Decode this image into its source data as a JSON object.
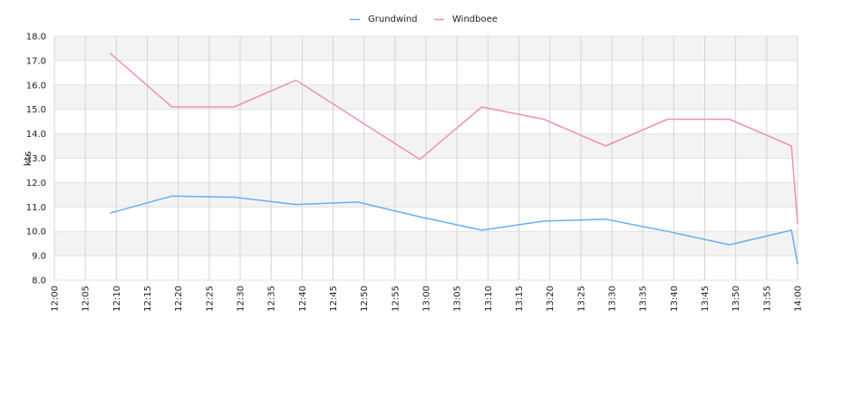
{
  "chart_data": {
    "type": "line",
    "title": "",
    "xlabel": "",
    "ylabel": "kts",
    "ylim": [
      8.0,
      18.0
    ],
    "y_ticks": [
      "8.0",
      "9.0",
      "10.0",
      "11.0",
      "12.0",
      "13.0",
      "14.0",
      "15.0",
      "16.0",
      "17.0",
      "18.0"
    ],
    "x_ticks": [
      "12:00",
      "12:05",
      "12:10",
      "12:15",
      "12:20",
      "12:25",
      "12:30",
      "12:35",
      "12:40",
      "12:45",
      "12:50",
      "12:55",
      "13:00",
      "13:05",
      "13:10",
      "13:15",
      "13:20",
      "13:25",
      "13:30",
      "13:35",
      "13:40",
      "13:45",
      "13:50",
      "13:55",
      "14:00"
    ],
    "xlim": [
      "12:00",
      "14:00"
    ],
    "grid": true,
    "legend_position": "top-center",
    "series": [
      {
        "name": "Grundwind",
        "color": "#6aaef0",
        "points": [
          [
            "12:09",
            10.75
          ],
          [
            "12:19",
            11.45
          ],
          [
            "12:29",
            11.4
          ],
          [
            "12:39",
            11.1
          ],
          [
            "12:49",
            11.2
          ],
          [
            "12:59",
            10.6
          ],
          [
            "13:09",
            10.05
          ],
          [
            "13:19",
            10.42
          ],
          [
            "13:29",
            10.5
          ],
          [
            "13:39",
            10.0
          ],
          [
            "13:49",
            9.45
          ],
          [
            "13:59",
            10.05
          ],
          [
            "14:00",
            8.65
          ]
        ]
      },
      {
        "name": "Windboee",
        "color": "#f08fbc",
        "points": [
          [
            "12:09",
            17.3
          ],
          [
            "12:19",
            15.1
          ],
          [
            "12:29",
            15.1
          ],
          [
            "12:39",
            16.2
          ],
          [
            "12:59",
            12.95
          ],
          [
            "13:09",
            15.1
          ],
          [
            "13:19",
            14.6
          ],
          [
            "13:29",
            13.5
          ],
          [
            "13:39",
            14.6
          ],
          [
            "13:49",
            14.6
          ],
          [
            "13:59",
            13.5
          ],
          [
            "14:00",
            10.3
          ]
        ]
      }
    ]
  }
}
